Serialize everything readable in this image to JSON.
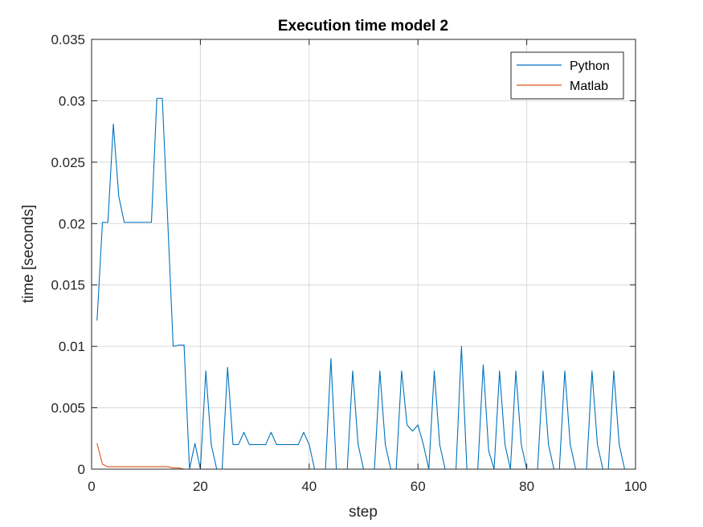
{
  "chart_data": {
    "type": "line",
    "title": "Execution time model 2",
    "xlabel": "step",
    "ylabel": "time [seconds]",
    "xlim": [
      0,
      100
    ],
    "ylim": [
      0,
      0.035
    ],
    "xticks": [
      "0",
      "20",
      "40",
      "60",
      "80",
      "100"
    ],
    "yticks": [
      "0",
      "0.005",
      "0.01",
      "0.015",
      "0.02",
      "0.025",
      "0.03",
      "0.035"
    ],
    "grid": true,
    "legend_position": "top-right",
    "series": [
      {
        "name": "Python",
        "color": "#0072BD",
        "x": [
          1,
          2,
          3,
          4,
          5,
          6,
          7,
          8,
          9,
          10,
          11,
          12,
          13,
          14,
          15,
          16,
          17,
          18,
          19,
          20,
          21,
          22,
          23,
          24,
          25,
          26,
          27,
          28,
          29,
          30,
          31,
          32,
          33,
          34,
          35,
          36,
          37,
          38,
          39,
          40,
          41,
          42,
          43,
          44,
          45,
          46,
          47,
          48,
          49,
          50,
          51,
          52,
          53,
          54,
          55,
          56,
          57,
          58,
          59,
          60,
          61,
          62,
          63,
          64,
          65,
          66,
          67,
          68,
          69,
          70,
          71,
          72,
          73,
          74,
          75,
          76,
          77,
          78,
          79,
          80,
          81,
          82,
          83,
          84,
          85,
          86,
          87,
          88,
          89,
          90,
          91,
          92,
          93,
          94,
          95,
          96,
          97,
          98,
          99,
          100
        ],
        "y": [
          0.0121,
          0.0201,
          0.0201,
          0.0281,
          0.0222,
          0.0201,
          0.0201,
          0.0201,
          0.0201,
          0.0201,
          0.0201,
          0.0302,
          0.0302,
          0.0202,
          0.01,
          0.0101,
          0.0101,
          0,
          0.0021,
          0,
          0.008,
          0.002,
          0,
          0,
          0.0083,
          0.002,
          0.002,
          0.003,
          0.002,
          0.002,
          0.002,
          0.002,
          0.003,
          0.002,
          0.002,
          0.002,
          0.002,
          0.002,
          0.003,
          0.002,
          0,
          0,
          0,
          0.009,
          0,
          0,
          0,
          0.008,
          0.002,
          0,
          0,
          0,
          0.008,
          0.002,
          0,
          0,
          0.008,
          0.0036,
          0.0031,
          0.0036,
          0.002,
          0,
          0.008,
          0.002,
          0,
          0,
          0,
          0.01,
          0,
          0,
          0,
          0.0085,
          0.0015,
          0,
          0.008,
          0.002,
          0,
          0.008,
          0.002,
          0,
          0,
          0,
          0.008,
          0.002,
          0,
          0,
          0.008,
          0.002,
          0,
          0,
          0,
          0.008,
          0.002,
          0,
          0,
          0.008,
          0.002,
          0,
          0,
          0
        ]
      },
      {
        "name": "Matlab",
        "color": "#D95319",
        "x": [
          1,
          2,
          3,
          4,
          5,
          6,
          7,
          8,
          9,
          10,
          11,
          12,
          13,
          14,
          15,
          16,
          17,
          18,
          19,
          20,
          25,
          30,
          35,
          40,
          45,
          50,
          55,
          60,
          65,
          70,
          75,
          80,
          85,
          90,
          95,
          100
        ],
        "y": [
          0.0021,
          0.0004,
          0.0002,
          0.0002,
          0.0002,
          0.0002,
          0.0002,
          0.0002,
          0.0002,
          0.0002,
          0.0002,
          0.0002,
          0.0002,
          0.0002,
          0.0001,
          0.0001,
          0,
          0,
          0,
          0,
          0,
          0,
          0,
          0,
          0,
          0,
          0,
          0,
          0,
          0,
          0,
          0,
          0,
          0,
          0,
          0
        ]
      }
    ]
  }
}
